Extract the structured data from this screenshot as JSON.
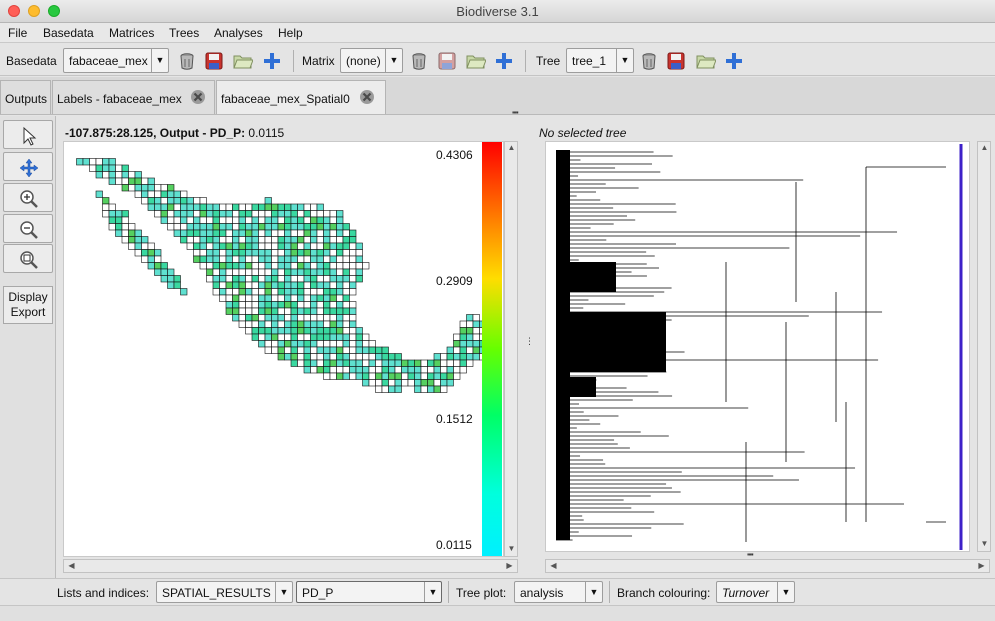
{
  "window": {
    "title": "Biodiverse 3.1"
  },
  "menubar": {
    "items": [
      "File",
      "Basedata",
      "Matrices",
      "Trees",
      "Analyses",
      "Help"
    ]
  },
  "toolbar": {
    "basedata_label": "Basedata",
    "basedata_value": "fabaceae_mex",
    "matrix_label": "Matrix",
    "matrix_value": "(none)",
    "tree_label": "Tree",
    "tree_value": "tree_1",
    "icons": [
      "delete-icon",
      "save-icon",
      "open-folder-icon",
      "add-icon"
    ]
  },
  "tabs": [
    {
      "label": "Outputs",
      "closable": false
    },
    {
      "label": "Labels - fabaceae_mex",
      "closable": true
    },
    {
      "label": "fabaceae_mex_Spatial0",
      "closable": true,
      "active": true
    }
  ],
  "tools": [
    "select-pointer-icon",
    "pan-icon",
    "zoom-in-icon",
    "zoom-out-icon",
    "zoom-fit-icon"
  ],
  "display_export": {
    "line1": "Display",
    "line2": "Export"
  },
  "map": {
    "coord_label": "-107.875:28.125, Output - PD_P:",
    "coord_value": "0.0115",
    "legend": {
      "max": "0.4306",
      "q2": "0.2909",
      "q3": "0.1512",
      "min": "0.0115"
    },
    "colors": {
      "low": "#00f0ff",
      "mid": "#66ff00",
      "high": "#ff0000"
    }
  },
  "tree": {
    "status": "No selected tree",
    "line_color": "#3d20c8"
  },
  "bottom": {
    "lists_label": "Lists and indices:",
    "list_value": "SPATIAL_RESULTS",
    "index_value": "PD_P",
    "tree_plot_label": "Tree plot:",
    "tree_plot_value": "analysis",
    "branch_label": "Branch colouring:",
    "branch_value": "Turnover"
  }
}
